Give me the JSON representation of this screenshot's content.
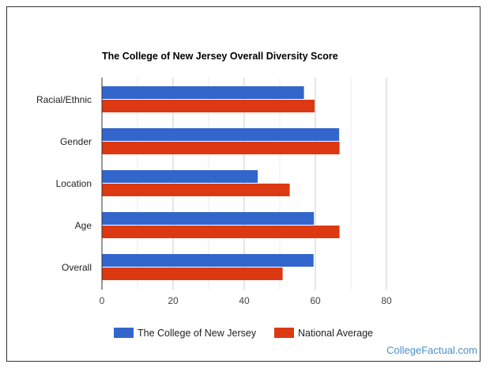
{
  "chart_data": {
    "type": "bar",
    "orientation": "horizontal",
    "title": "The College of New Jersey Overall Diversity Score",
    "categories": [
      "Racial/Ethnic",
      "Gender",
      "Location",
      "Age",
      "Overall"
    ],
    "series": [
      {
        "name": "The College of New Jersey",
        "color": "#3366cc",
        "values": [
          56.8,
          66.7,
          43.8,
          59.6,
          59.5
        ]
      },
      {
        "name": "National Average",
        "color": "#dc3912",
        "values": [
          59.8,
          66.8,
          52.8,
          66.8,
          50.8
        ]
      }
    ],
    "xlim": [
      0,
      80
    ],
    "ticks": [
      0,
      20,
      40,
      60,
      80
    ],
    "grid": true,
    "legend_position": "bottom"
  },
  "watermark": "CollegeFactual.com"
}
